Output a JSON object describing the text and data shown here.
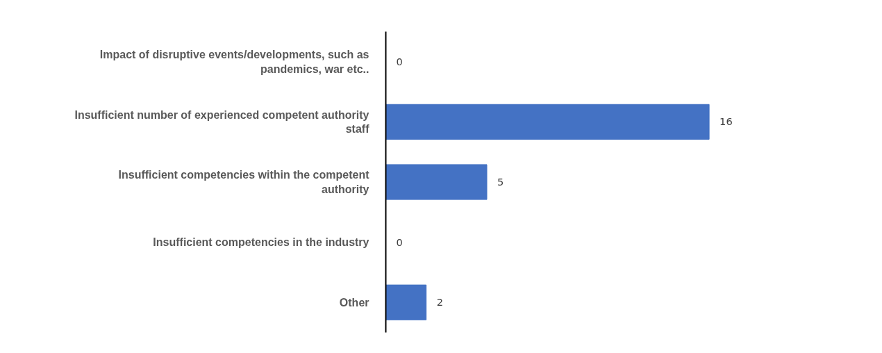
{
  "chart_data": {
    "type": "bar",
    "orientation": "horizontal",
    "categories": [
      "Impact of disruptive events/developments, such as pandemics, war etc..",
      "Insufficient number of experienced competent authority staff",
      "Insufficient competencies within the competent authority",
      "Insufficient competencies in the industry",
      "Other"
    ],
    "values": [
      0,
      16,
      5,
      0,
      2
    ],
    "color": "#4472c4",
    "data_labels": true
  }
}
